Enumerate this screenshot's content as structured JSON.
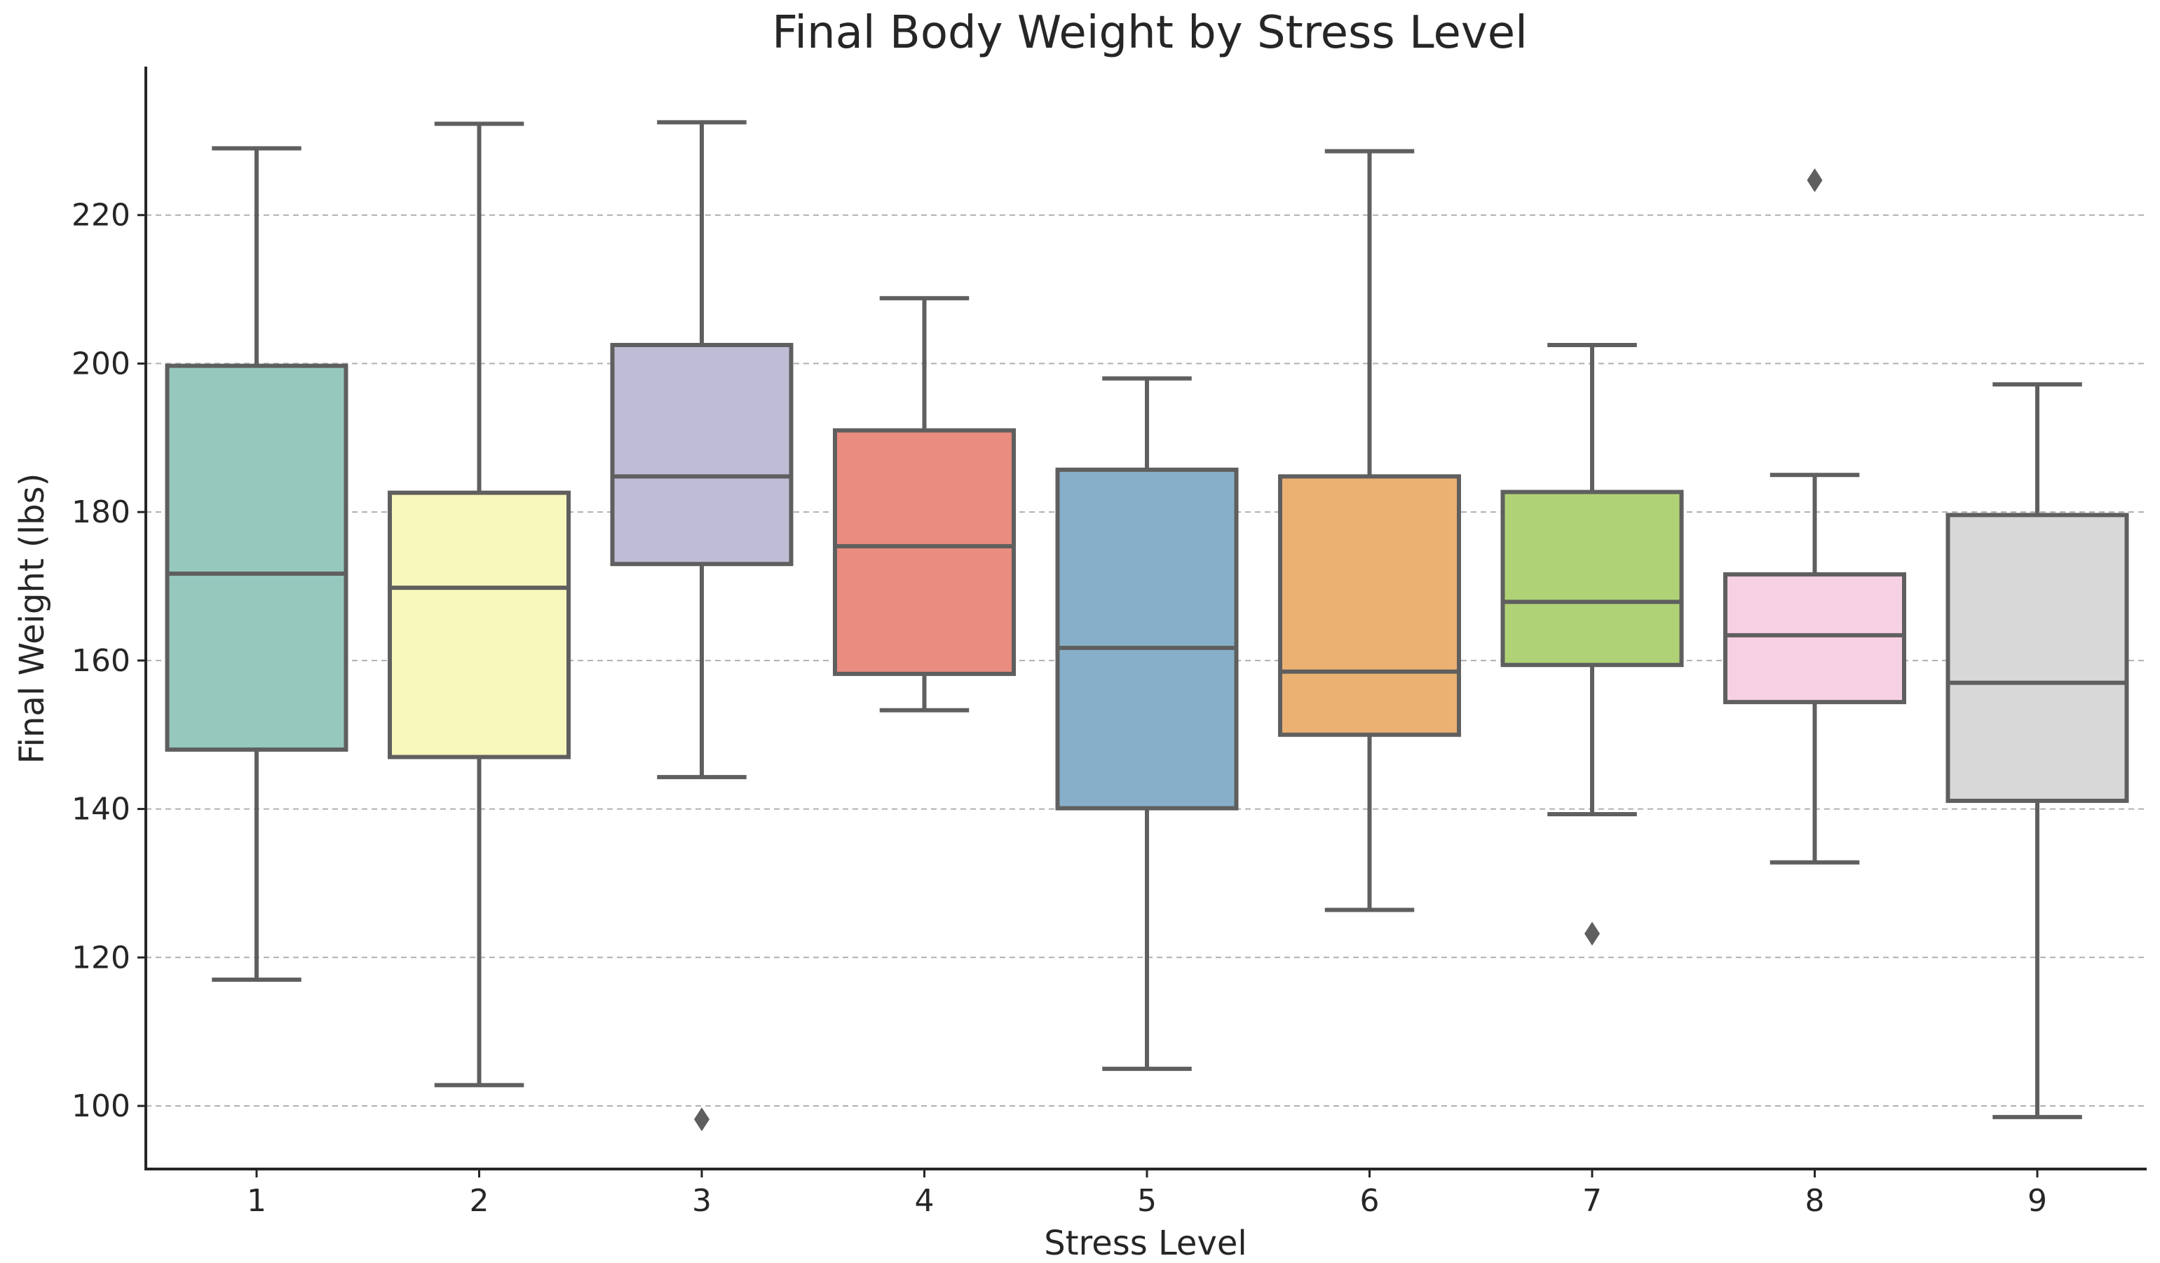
{
  "chart_data": {
    "type": "box",
    "title": "Final Body Weight by Stress Level",
    "xlabel": "Stress Level",
    "ylabel": "Final Weight (lbs)",
    "ylim": [
      91.5,
      240
    ],
    "yticks": [
      100,
      120,
      140,
      160,
      180,
      200,
      220
    ],
    "grid": "y",
    "categories": [
      "1",
      "2",
      "3",
      "4",
      "5",
      "6",
      "7",
      "8",
      "9"
    ],
    "boxes": [
      {
        "category": "1",
        "whisker_low": 117,
        "q1": 148,
        "median": 171.7,
        "q3": 199.7,
        "whisker_high": 229,
        "outliers": [],
        "color": "#96c8be"
      },
      {
        "category": "2",
        "whisker_low": 102.8,
        "q1": 147,
        "median": 169.8,
        "q3": 182.6,
        "whisker_high": 232.3,
        "outliers": [],
        "color": "#f7f6bb"
      },
      {
        "category": "3",
        "whisker_low": 144.3,
        "q1": 173,
        "median": 184.8,
        "q3": 202.5,
        "whisker_high": 232.5,
        "outliers": [
          98.2
        ],
        "color": "#bfbcd6"
      },
      {
        "category": "4",
        "whisker_low": 153.3,
        "q1": 158.2,
        "median": 175.4,
        "q3": 191,
        "whisker_high": 208.8,
        "outliers": [],
        "color": "#ea8c80"
      },
      {
        "category": "5",
        "whisker_low": 105,
        "q1": 140.1,
        "median": 161.7,
        "q3": 185.7,
        "whisker_high": 198,
        "outliers": [],
        "color": "#88afca"
      },
      {
        "category": "6",
        "whisker_low": 126.4,
        "q1": 150,
        "median": 158.5,
        "q3": 184.8,
        "whisker_high": 228.6,
        "outliers": [],
        "color": "#ebb173"
      },
      {
        "category": "7",
        "whisker_low": 139.3,
        "q1": 159.4,
        "median": 167.9,
        "q3": 182.7,
        "whisker_high": 202.5,
        "outliers": [
          123.2
        ],
        "color": "#b0d277"
      },
      {
        "category": "8",
        "whisker_low": 132.8,
        "q1": 154.4,
        "median": 163.4,
        "q3": 171.6,
        "whisker_high": 185,
        "outliers": [
          224.7
        ],
        "color": "#f6d0e3"
      },
      {
        "category": "9",
        "whisker_low": 98.5,
        "q1": 141.1,
        "median": 157,
        "q3": 179.6,
        "whisker_high": 197.2,
        "outliers": [],
        "color": "#d8d8d8"
      }
    ]
  }
}
